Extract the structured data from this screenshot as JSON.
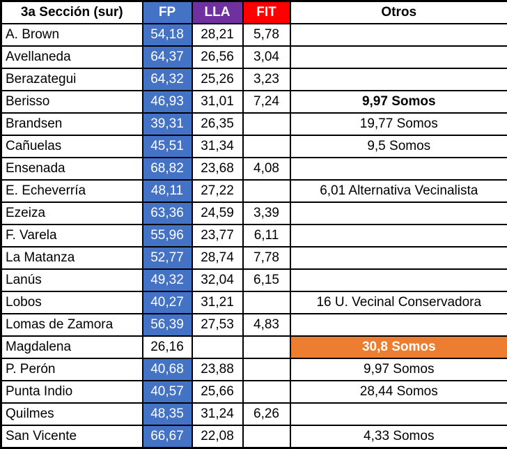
{
  "table": {
    "title": "3a Sección (sur)",
    "headers": {
      "fp": "FP",
      "lla": "LLA",
      "fit": "FIT",
      "otros": "Otros"
    },
    "colors": {
      "fp": "#4472C4",
      "lla": "#7030A0",
      "fit": "#FF0000",
      "highlight": "#ED7D31",
      "border": "#000000"
    },
    "rows": [
      {
        "district": "A. Brown",
        "fp": "54,18",
        "lla": "28,21",
        "fit": "5,78",
        "otros": "",
        "fp_filled": true,
        "otros_bold": false,
        "otros_highlight": false
      },
      {
        "district": "Avellaneda",
        "fp": "64,37",
        "lla": "26,56",
        "fit": "3,04",
        "otros": "",
        "fp_filled": true,
        "otros_bold": false,
        "otros_highlight": false
      },
      {
        "district": "Berazategui",
        "fp": "64,32",
        "lla": "25,26",
        "fit": "3,23",
        "otros": "",
        "fp_filled": true,
        "otros_bold": false,
        "otros_highlight": false
      },
      {
        "district": "Berisso",
        "fp": "46,93",
        "lla": "31,01",
        "fit": "7,24",
        "otros": "9,97 Somos",
        "fp_filled": true,
        "otros_bold": true,
        "otros_highlight": false
      },
      {
        "district": "Brandsen",
        "fp": "39,31",
        "lla": "26,35",
        "fit": "",
        "otros": "19,77 Somos",
        "fp_filled": true,
        "otros_bold": false,
        "otros_highlight": false
      },
      {
        "district": "Cañuelas",
        "fp": "45,51",
        "lla": "31,34",
        "fit": "",
        "otros": "9,5 Somos",
        "fp_filled": true,
        "otros_bold": false,
        "otros_highlight": false
      },
      {
        "district": "Ensenada",
        "fp": "68,82",
        "lla": "23,68",
        "fit": "4,08",
        "otros": "",
        "fp_filled": true,
        "otros_bold": false,
        "otros_highlight": false
      },
      {
        "district": "E. Echeverría",
        "fp": "48,11",
        "lla": "27,22",
        "fit": "",
        "otros": "6,01 Alternativa Vecinalista",
        "fp_filled": true,
        "otros_bold": false,
        "otros_highlight": false
      },
      {
        "district": "Ezeiza",
        "fp": "63,36",
        "lla": "24,59",
        "fit": "3,39",
        "otros": "",
        "fp_filled": true,
        "otros_bold": false,
        "otros_highlight": false
      },
      {
        "district": "F. Varela",
        "fp": "55,96",
        "lla": "23,77",
        "fit": "6,11",
        "otros": "",
        "fp_filled": true,
        "otros_bold": false,
        "otros_highlight": false
      },
      {
        "district": "La Matanza",
        "fp": "52,77",
        "lla": "28,74",
        "fit": "7,78",
        "otros": "",
        "fp_filled": true,
        "otros_bold": false,
        "otros_highlight": false
      },
      {
        "district": "Lanús",
        "fp": "49,32",
        "lla": "32,04",
        "fit": "6,15",
        "otros": "",
        "fp_filled": true,
        "otros_bold": false,
        "otros_highlight": false
      },
      {
        "district": "Lobos",
        "fp": "40,27",
        "lla": "31,21",
        "fit": "",
        "otros": "16 U. Vecinal Conservadora",
        "fp_filled": true,
        "otros_bold": false,
        "otros_highlight": false
      },
      {
        "district": "Lomas de Zamora",
        "fp": "56,39",
        "lla": "27,53",
        "fit": "4,83",
        "otros": "",
        "fp_filled": true,
        "otros_bold": false,
        "otros_highlight": false
      },
      {
        "district": "Magdalena",
        "fp": "26,16",
        "lla": "",
        "fit": "",
        "otros": "30,8 Somos",
        "fp_filled": false,
        "otros_bold": true,
        "otros_highlight": true
      },
      {
        "district": "P. Perón",
        "fp": "40,68",
        "lla": "23,88",
        "fit": "",
        "otros": "9,97 Somos",
        "fp_filled": true,
        "otros_bold": false,
        "otros_highlight": false
      },
      {
        "district": "Punta Indio",
        "fp": "40,57",
        "lla": "25,66",
        "fit": "",
        "otros": "28,44 Somos",
        "fp_filled": true,
        "otros_bold": false,
        "otros_highlight": false
      },
      {
        "district": "Quilmes",
        "fp": "48,35",
        "lla": "31,24",
        "fit": "6,26",
        "otros": "",
        "fp_filled": true,
        "otros_bold": false,
        "otros_highlight": false
      },
      {
        "district": "San Vicente",
        "fp": "66,67",
        "lla": "22,08",
        "fit": "",
        "otros": "4,33 Somos",
        "fp_filled": true,
        "otros_bold": false,
        "otros_highlight": false
      }
    ]
  },
  "chart_data": {
    "type": "table",
    "title": "3a Sección (sur)",
    "columns": [
      "FP",
      "LLA",
      "FIT",
      "Otros"
    ],
    "categories": [
      "A. Brown",
      "Avellaneda",
      "Berazategui",
      "Berisso",
      "Brandsen",
      "Cañuelas",
      "Ensenada",
      "E. Echeverría",
      "Ezeiza",
      "F. Varela",
      "La Matanza",
      "Lanús",
      "Lobos",
      "Lomas de Zamora",
      "Magdalena",
      "P. Perón",
      "Punta Indio",
      "Quilmes",
      "San Vicente"
    ],
    "series": [
      {
        "name": "FP",
        "values": [
          54.18,
          64.37,
          64.32,
          46.93,
          39.31,
          45.51,
          68.82,
          48.11,
          63.36,
          55.96,
          52.77,
          49.32,
          40.27,
          56.39,
          26.16,
          40.68,
          40.57,
          48.35,
          66.67
        ]
      },
      {
        "name": "LLA",
        "values": [
          28.21,
          26.56,
          25.26,
          31.01,
          26.35,
          31.34,
          23.68,
          27.22,
          24.59,
          23.77,
          28.74,
          32.04,
          31.21,
          27.53,
          null,
          23.88,
          25.66,
          31.24,
          22.08
        ]
      },
      {
        "name": "FIT",
        "values": [
          5.78,
          3.04,
          3.23,
          7.24,
          null,
          null,
          4.08,
          null,
          3.39,
          6.11,
          7.78,
          6.15,
          null,
          4.83,
          null,
          null,
          null,
          6.26,
          null
        ]
      },
      {
        "name": "Otros",
        "values": [
          "",
          "",
          "",
          "9,97 Somos",
          "19,77 Somos",
          "9,5 Somos",
          "",
          "6,01 Alternativa Vecinalista",
          "",
          "",
          "",
          "",
          "16 U. Vecinal Conservadora",
          "",
          "30,8 Somos",
          "9,97 Somos",
          "28,44 Somos",
          "",
          "4,33 Somos"
        ]
      }
    ],
    "legend_position": "none",
    "grid": true
  }
}
